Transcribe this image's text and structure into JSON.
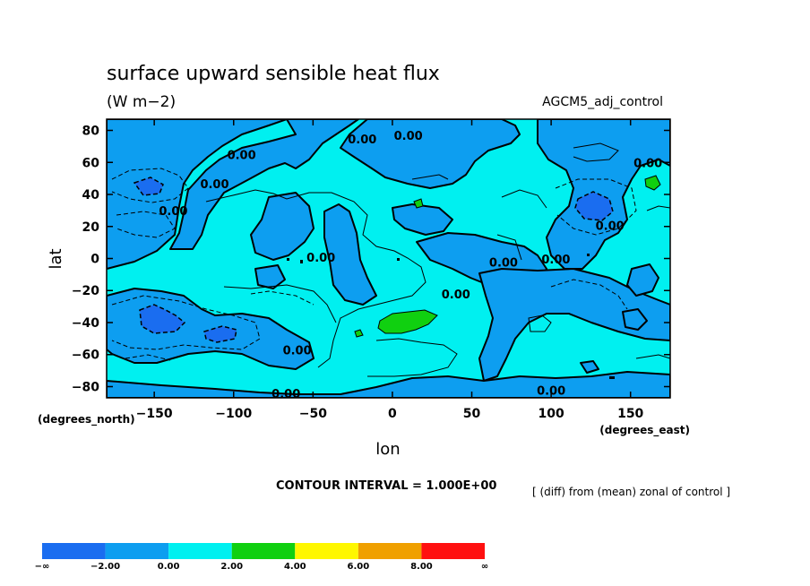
{
  "chart_data": {
    "type": "heatmap",
    "title": "surface upward sensible heat flux",
    "units": "(W m−2)",
    "dataset": "AGCM5_adj_control",
    "xlabel": "lon",
    "ylabel": "lat",
    "x_unit_label": "(degrees_east)",
    "y_unit_label": "(degrees_north)",
    "xlim": [
      -180,
      175
    ],
    "ylim": [
      -87,
      87
    ],
    "x_ticks": [
      -150,
      -100,
      -50,
      0,
      50,
      100,
      150
    ],
    "x_tick_labels": [
      "−150",
      "−100",
      "−50",
      "0",
      "50",
      "100",
      "150"
    ],
    "y_ticks": [
      80,
      60,
      40,
      20,
      0,
      -20,
      -40,
      -60,
      -80
    ],
    "y_tick_labels": [
      "80",
      "60",
      "40",
      "20",
      "0",
      "−20",
      "−40",
      "−60",
      "−80"
    ],
    "contour_interval_text": "CONTOUR INTERVAL = 1.000E+00",
    "note": "[ (diff) from (mean) zonal of control ]",
    "contour_labels": [
      {
        "text": "0.00",
        "lon": -95,
        "lat": 62
      },
      {
        "text": "0.00",
        "lon": -112,
        "lat": 44
      },
      {
        "text": "0.00",
        "lon": -138,
        "lat": 27
      },
      {
        "text": "0.00",
        "lon": -19,
        "lat": 72
      },
      {
        "text": "0.00",
        "lon": 10,
        "lat": 74
      },
      {
        "text": "0.00",
        "lon": 161,
        "lat": 57
      },
      {
        "text": "0.00",
        "lon": 137,
        "lat": 18
      },
      {
        "text": "0.00",
        "lon": -45,
        "lat": -2
      },
      {
        "text": "0.00",
        "lon": 70,
        "lat": -5
      },
      {
        "text": "0.00",
        "lon": 103,
        "lat": -3
      },
      {
        "text": "0.00",
        "lon": 40,
        "lat": -25
      },
      {
        "text": "0.00",
        "lon": -60,
        "lat": -60
      },
      {
        "text": "0.00",
        "lon": -67,
        "lat": -87
      },
      {
        "text": "0.00",
        "lon": 100,
        "lat": -85
      }
    ],
    "colorbar": {
      "labels": [
        "−∞",
        "−2.00",
        "0.00",
        "2.00",
        "4.00",
        "6.00",
        "8.00",
        "∞"
      ],
      "colors": [
        "#1a6df0",
        "#0d9ef0",
        "#00f0f0",
        "#10d010",
        "#fff700",
        "#f0a000",
        "#ff1010"
      ],
      "bins": [
        {
          "from": "-inf",
          "to": -2
        },
        {
          "from": -2,
          "to": 0
        },
        {
          "from": 0,
          "to": 2
        },
        {
          "from": 2,
          "to": 4
        },
        {
          "from": 4,
          "to": 6
        },
        {
          "from": 6,
          "to": 8
        },
        {
          "from": 8,
          "to": "inf"
        }
      ]
    },
    "legend_position": "bottom",
    "grid": false
  }
}
